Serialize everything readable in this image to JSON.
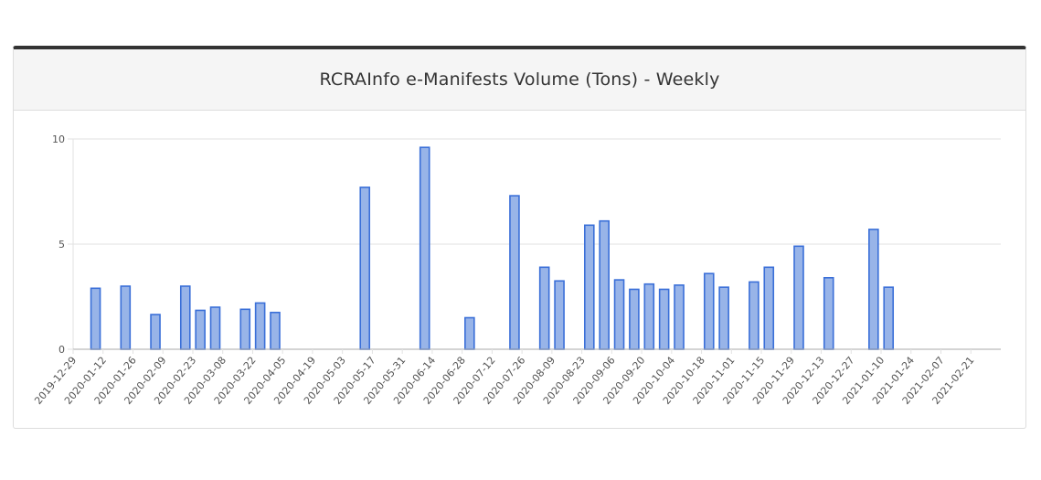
{
  "panel": {
    "title": "RCRAInfo e-Manifests Volume (Tons) - Weekly"
  },
  "colors": {
    "bar_fill": "#98b4e8",
    "bar_stroke": "#3a6fd8",
    "grid": "#e2e2e2",
    "axis": "#aaaaaa",
    "header_border": "#333333"
  },
  "chart_data": {
    "type": "bar",
    "title": "RCRAInfo e-Manifests Volume (Tons) - Weekly",
    "xlabel": "",
    "ylabel": "",
    "ylim": [
      0,
      10
    ],
    "y_ticks": [
      "0",
      "5",
      "10"
    ],
    "grid": true,
    "legend": "none",
    "categories": [
      "2019-12-29",
      "2020-01-05",
      "2020-01-12",
      "2020-01-19",
      "2020-01-26",
      "2020-02-02",
      "2020-02-09",
      "2020-02-16",
      "2020-02-23",
      "2020-03-01",
      "2020-03-08",
      "2020-03-15",
      "2020-03-22",
      "2020-03-29",
      "2020-04-05",
      "2020-04-12",
      "2020-04-19",
      "2020-04-26",
      "2020-05-03",
      "2020-05-10",
      "2020-05-17",
      "2020-05-24",
      "2020-05-31",
      "2020-06-07",
      "2020-06-14",
      "2020-06-21",
      "2020-06-28",
      "2020-07-05",
      "2020-07-12",
      "2020-07-19",
      "2020-07-26",
      "2020-08-02",
      "2020-08-09",
      "2020-08-16",
      "2020-08-23",
      "2020-08-30",
      "2020-09-06",
      "2020-09-13",
      "2020-09-20",
      "2020-09-27",
      "2020-10-04",
      "2020-10-11",
      "2020-10-18",
      "2020-10-25",
      "2020-11-01",
      "2020-11-08",
      "2020-11-15",
      "2020-11-22",
      "2020-11-29",
      "2020-12-06",
      "2020-12-13",
      "2020-12-20",
      "2020-12-27",
      "2021-01-03",
      "2021-01-10",
      "2021-01-17",
      "2021-01-24",
      "2021-01-31",
      "2021-02-07",
      "2021-02-14",
      "2021-02-21",
      "2021-02-28"
    ],
    "tick_labels": [
      "2019-12-29",
      "2020-01-12",
      "2020-01-26",
      "2020-02-09",
      "2020-02-23",
      "2020-03-08",
      "2020-03-22",
      "2020-04-05",
      "2020-04-19",
      "2020-05-03",
      "2020-05-17",
      "2020-05-31",
      "2020-06-14",
      "2020-06-28",
      "2020-07-12",
      "2020-07-26",
      "2020-08-09",
      "2020-08-23",
      "2020-09-06",
      "2020-09-20",
      "2020-10-04",
      "2020-10-18",
      "2020-11-01",
      "2020-11-15",
      "2020-11-29",
      "2020-12-13",
      "2020-12-27",
      "2021-01-10",
      "2021-01-24",
      "2021-02-07",
      "2021-02-21"
    ],
    "values": [
      null,
      2.9,
      null,
      3.0,
      null,
      1.65,
      null,
      3.0,
      1.85,
      2.0,
      null,
      1.9,
      2.2,
      1.75,
      null,
      null,
      null,
      null,
      null,
      7.7,
      null,
      null,
      null,
      9.6,
      null,
      null,
      1.5,
      null,
      null,
      7.3,
      null,
      3.9,
      3.25,
      null,
      5.9,
      6.1,
      3.3,
      2.85,
      3.1,
      2.85,
      3.05,
      null,
      3.6,
      2.95,
      null,
      3.2,
      3.9,
      null,
      4.9,
      null,
      3.4,
      null,
      null,
      5.7,
      2.95,
      null,
      null,
      null,
      null,
      null,
      null,
      null
    ]
  }
}
